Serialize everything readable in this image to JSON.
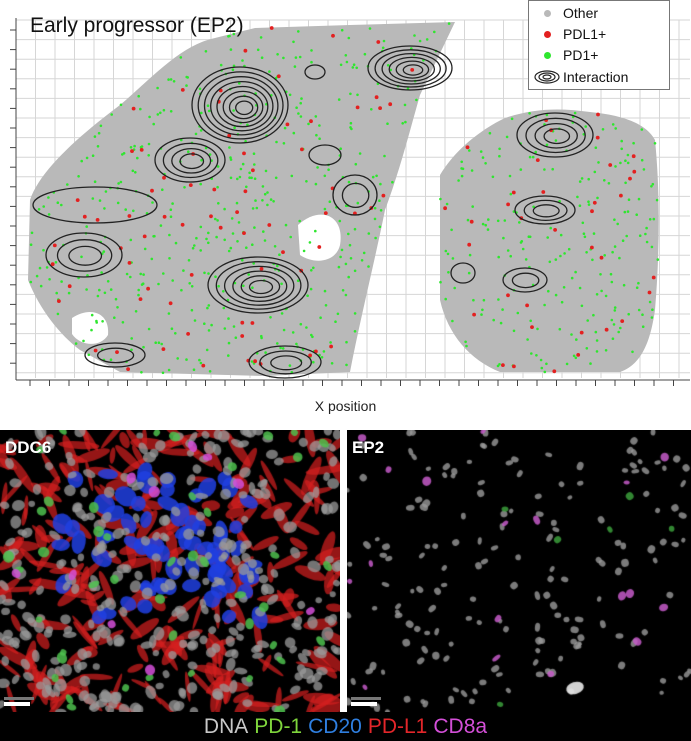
{
  "scatter": {
    "title": "Early progressor (EP2)",
    "x_label": "X position",
    "legend": [
      {
        "key": "other",
        "label": "Other",
        "color": "#b9b9b9"
      },
      {
        "key": "pdl1",
        "label": "PDL1+",
        "color": "#e32020"
      },
      {
        "key": "pd1",
        "label": "PD1+",
        "color": "#2ee62e"
      },
      {
        "key": "interaction",
        "label": "Interaction",
        "color": "#222222"
      }
    ]
  },
  "micro_panels": [
    {
      "key": "ddc6",
      "label": "DDC6"
    },
    {
      "key": "ep2",
      "label": "EP2"
    }
  ],
  "stains": [
    {
      "label": "DNA",
      "color": "#c8c8c8"
    },
    {
      "label": "PD-1",
      "color": "#7fd63c"
    },
    {
      "label": "CD20",
      "color": "#2f7fe0"
    },
    {
      "label": "PD-L1",
      "color": "#e3262a"
    },
    {
      "label": "CD8a",
      "color": "#d44fd8"
    }
  ]
}
